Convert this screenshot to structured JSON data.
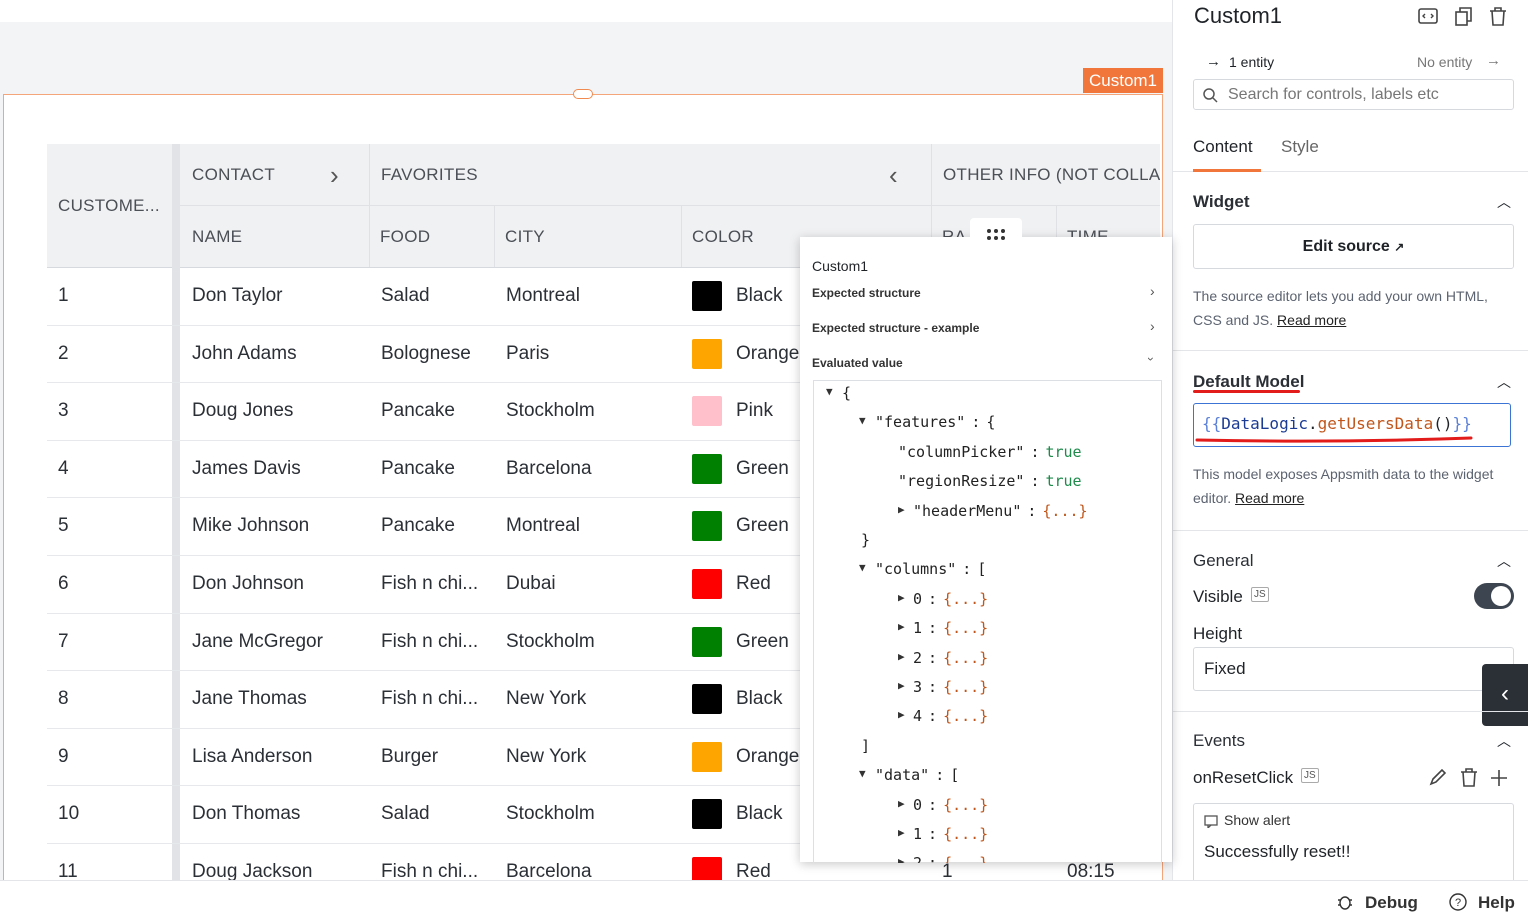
{
  "canvas": {
    "widget_label": "Custom1"
  },
  "table": {
    "id_header": "CUSTOME...",
    "group_headers": [
      "CONTACT",
      "FAVORITES",
      "OTHER INFO (NOT COLLA"
    ],
    "columns": [
      "NAME",
      "FOOD",
      "CITY",
      "COLOR",
      "RA",
      "TIME"
    ],
    "rows": [
      {
        "cells": [
          "1",
          "Don Taylor",
          "Salad",
          "Montreal",
          "Black"
        ],
        "swatch": "#000000"
      },
      {
        "cells": [
          "2",
          "John Adams",
          "Bolognese",
          "Paris",
          "Orange"
        ],
        "swatch": "#ffa500"
      },
      {
        "cells": [
          "3",
          "Doug Jones",
          "Pancake",
          "Stockholm",
          "Pink"
        ],
        "swatch": "#ffc0cb"
      },
      {
        "cells": [
          "4",
          "James Davis",
          "Pancake",
          "Barcelona",
          "Green"
        ],
        "swatch": "#008000"
      },
      {
        "cells": [
          "5",
          "Mike Johnson",
          "Pancake",
          "Montreal",
          "Green"
        ],
        "swatch": "#008000"
      },
      {
        "cells": [
          "6",
          "Don Johnson",
          "Fish n chi...",
          "Dubai",
          "Red"
        ],
        "swatch": "#ff0000"
      },
      {
        "cells": [
          "7",
          "Jane McGregor",
          "Fish n chi...",
          "Stockholm",
          "Green"
        ],
        "swatch": "#008000"
      },
      {
        "cells": [
          "8",
          "Jane Thomas",
          "Fish n chi...",
          "New York",
          "Black"
        ],
        "swatch": "#000000"
      },
      {
        "cells": [
          "9",
          "Lisa Anderson",
          "Burger",
          "New York",
          "Orange"
        ],
        "swatch": "#ffa500"
      },
      {
        "cells": [
          "10",
          "Don Thomas",
          "Salad",
          "Stockholm",
          "Black"
        ],
        "swatch": "#000000"
      },
      {
        "cells": [
          "11",
          "Doug Jackson",
          "Fish n chi...",
          "Barcelona",
          "Red",
          "1",
          "08:15"
        ],
        "swatch": "#ff0000"
      }
    ]
  },
  "popover": {
    "title": "Custom1",
    "sections": [
      "Expected structure",
      "Expected structure - example",
      "Evaluated value"
    ],
    "tree": {
      "open": "{",
      "children": [
        {
          "key": "\"features\"",
          "sep": ":",
          "open": "{",
          "close": "}",
          "children": [
            {
              "key": "\"columnPicker\"",
              "sep": ":",
              "value": "true"
            },
            {
              "key": "\"regionResize\"",
              "sep": ":",
              "value": "true"
            },
            {
              "key": "\"headerMenu\"",
              "sep": ":",
              "value": "{...}",
              "collapsed": true
            }
          ]
        },
        {
          "key": "\"columns\"",
          "sep": ":",
          "open": "[",
          "close": "]",
          "children": [
            {
              "key": "0",
              "sep": ":",
              "value": "{...}",
              "collapsed": true
            },
            {
              "key": "1",
              "sep": ":",
              "value": "{...}",
              "collapsed": true
            },
            {
              "key": "2",
              "sep": ":",
              "value": "{...}",
              "collapsed": true
            },
            {
              "key": "3",
              "sep": ":",
              "value": "{...}",
              "collapsed": true
            },
            {
              "key": "4",
              "sep": ":",
              "value": "{...}",
              "collapsed": true
            }
          ]
        },
        {
          "key": "\"data\"",
          "sep": ":",
          "open": "[",
          "children": [
            {
              "key": "0",
              "sep": ":",
              "value": "{...}",
              "collapsed": true
            },
            {
              "key": "1",
              "sep": ":",
              "value": "{...}",
              "collapsed": true
            },
            {
              "key": "2",
              "sep": ":",
              "value": "{...}",
              "collapsed": true
            }
          ]
        }
      ]
    }
  },
  "panel": {
    "title": "Custom1",
    "entity_left": "1 entity",
    "entity_right": "No entity",
    "search_placeholder": "Search for controls, labels etc",
    "tabs": [
      "Content",
      "Style"
    ],
    "widget": {
      "heading": "Widget",
      "button": "Edit source",
      "desc": "The source editor lets you add your own HTML, CSS and JS.",
      "link": "Read more"
    },
    "default_model": {
      "heading": "Default Model",
      "code_open": "{{",
      "code_obj": "DataLogic",
      "code_dot": ".",
      "code_fn": "getUsersData",
      "code_parens": "()",
      "code_close": "}}",
      "desc": "This model exposes Appsmith data to the widget editor.",
      "link": "Read more"
    },
    "general": {
      "heading": "General",
      "visible_label": "Visible",
      "js": "JS",
      "height_label": "Height",
      "height_value": "Fixed"
    },
    "events": {
      "heading": "Events",
      "event_name": "onResetClick",
      "js": "JS",
      "action": "Show alert",
      "message": "Successfully reset!!"
    }
  },
  "bottom_bar": {
    "debug": "Debug",
    "help": "Help"
  }
}
